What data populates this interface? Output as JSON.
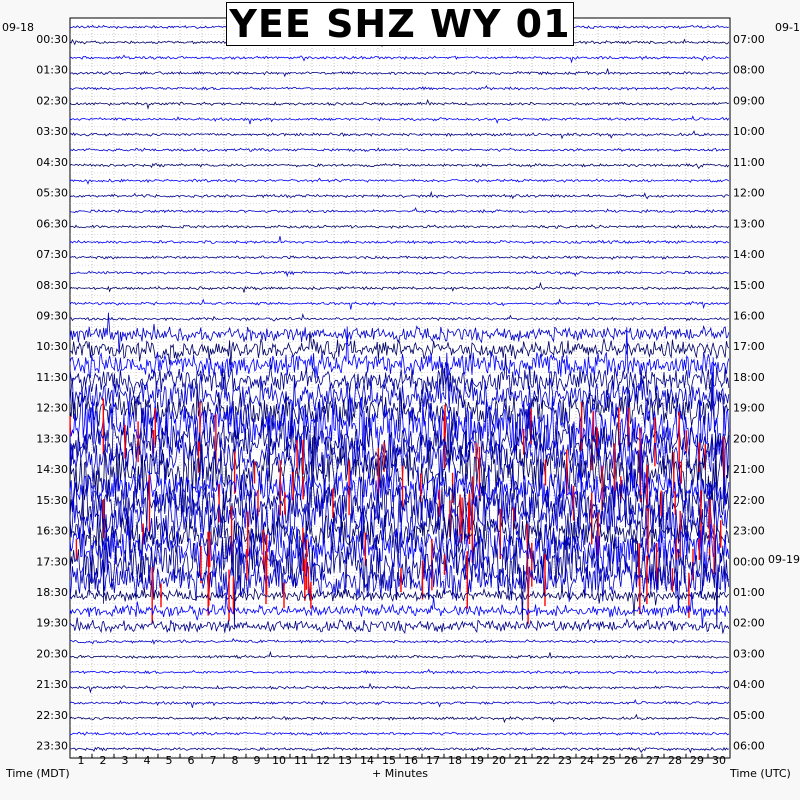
{
  "chart_data": {
    "type": "line",
    "title": "YEE SHZ WY 01",
    "xlabel": "+ Minutes",
    "ylabel_left": "Time (MDT)",
    "ylabel_right": "Time (UTC)",
    "date_left": "09-18",
    "date_right_top": "09-1",
    "date_right_mid": "09-19",
    "xlim": [
      0,
      30
    ],
    "x_ticks": [
      "1",
      "2",
      "3",
      "4",
      "5",
      "6",
      "7",
      "8",
      "9",
      "10",
      "11",
      "12",
      "13",
      "14",
      "15",
      "16",
      "17",
      "18",
      "19",
      "20",
      "21",
      "22",
      "23",
      "24",
      "25",
      "26",
      "27",
      "28",
      "29",
      "30"
    ],
    "left_labels": [
      "00:30",
      "01:30",
      "02:30",
      "03:30",
      "04:30",
      "05:30",
      "06:30",
      "07:30",
      "08:30",
      "09:30",
      "10:30",
      "11:30",
      "12:30",
      "13:30",
      "14:30",
      "15:30",
      "16:30",
      "17:30",
      "18:30",
      "19:30",
      "20:30",
      "21:30",
      "22:30",
      "23:30"
    ],
    "right_labels": [
      "07:00",
      "08:00",
      "09:00",
      "10:00",
      "11:00",
      "12:00",
      "13:00",
      "14:00",
      "15:00",
      "16:00",
      "17:00",
      "18:00",
      "19:00",
      "20:00",
      "21:00",
      "22:00",
      "23:00",
      "00:00",
      "01:00",
      "02:00",
      "03:00",
      "04:00",
      "05:00",
      "06:00"
    ],
    "trace_colors": [
      "#0000cc",
      "#000066",
      "#0000ff",
      "#000088"
    ],
    "clip_color": "#ff0000",
    "traces": 48,
    "minutes_per_trace": 30
  }
}
